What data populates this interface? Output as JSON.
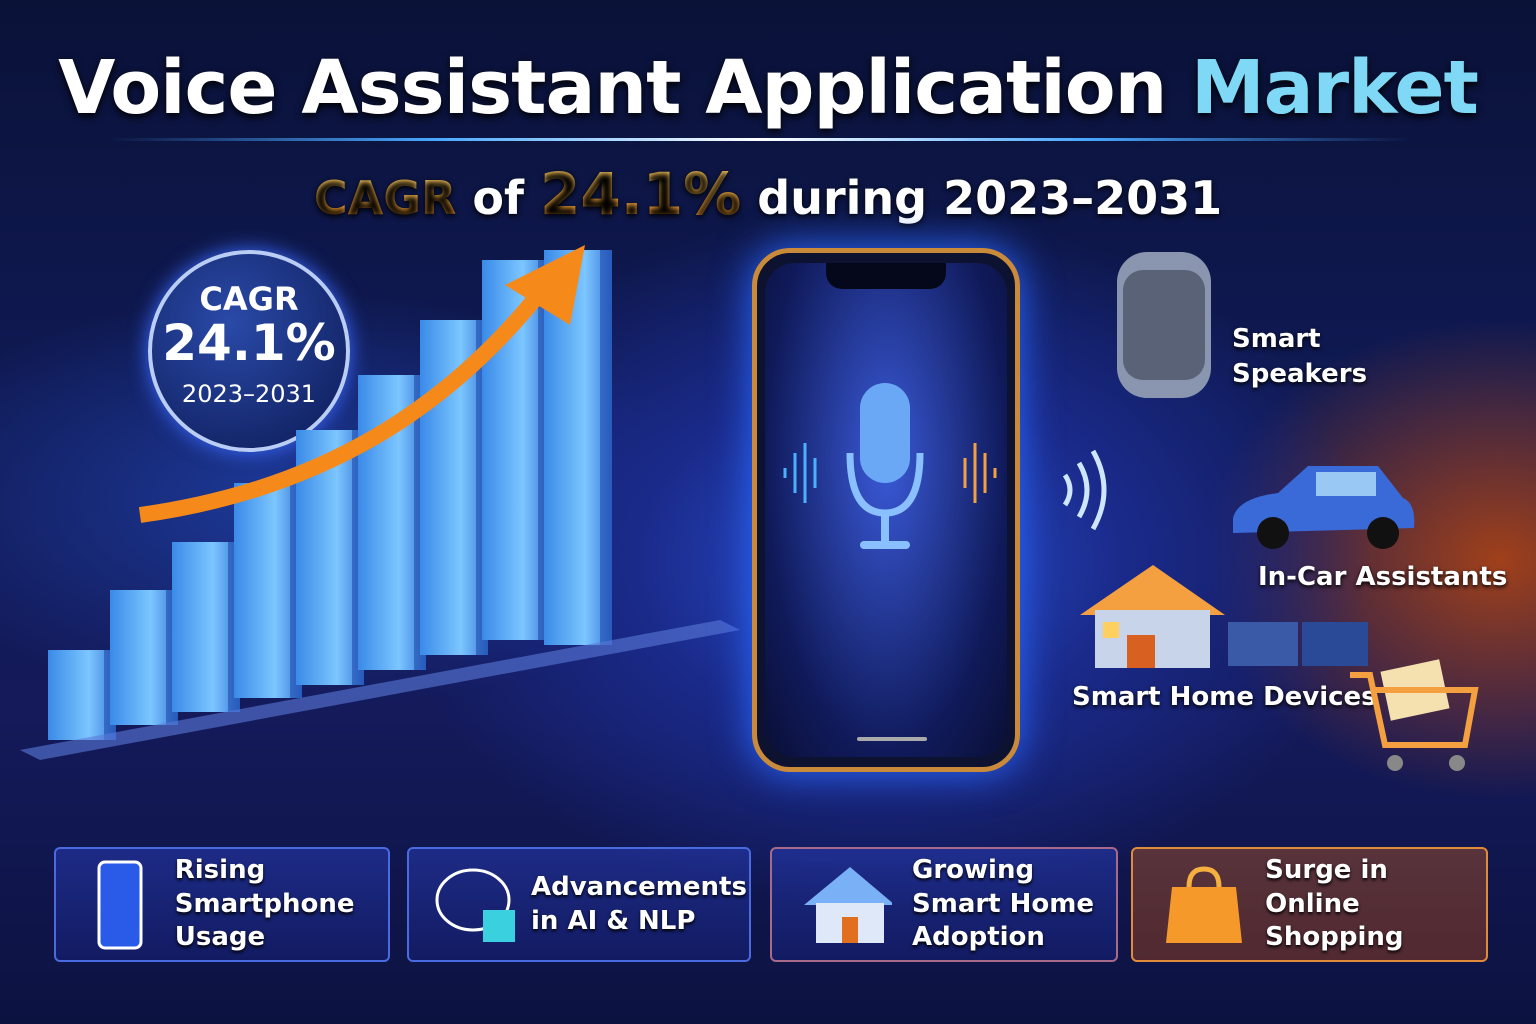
{
  "title": {
    "main": "Voice Assistant Application",
    "accent": "Market"
  },
  "subtitle": {
    "cagr": "CAGR",
    "of": "of",
    "rate": "24.1%",
    "period": "during 2023–2031"
  },
  "badge": {
    "label": "CAGR",
    "rate": "24.1%",
    "period": "2023–2031"
  },
  "segments": [
    {
      "label": "Smart Speakers",
      "icon": "smart-speaker-icon"
    },
    {
      "label": "In-Car Assistants",
      "icon": "car-icon"
    },
    {
      "label": "Smart Home Devices",
      "icon": "house-icon"
    },
    {
      "icon": "shopping-cart-icon"
    }
  ],
  "drivers": [
    {
      "line1": "Rising",
      "line2": "Smartphone Usage",
      "icon": "smartphone-icon"
    },
    {
      "line1": "Advancements",
      "line2": "in AI & NLP",
      "icon": "brain-chip-icon"
    },
    {
      "line1": "Growing",
      "line2": "Smart Home",
      "line3": "Adoption",
      "icon": "house-icon"
    },
    {
      "line1": "Surge in",
      "line2": "Online Shopping",
      "icon": "shopping-bag-icon"
    }
  ],
  "colors": {
    "accent_cyan": "#7fd8f5",
    "accent_orange": "#f5a623",
    "background": "#101a55"
  }
}
